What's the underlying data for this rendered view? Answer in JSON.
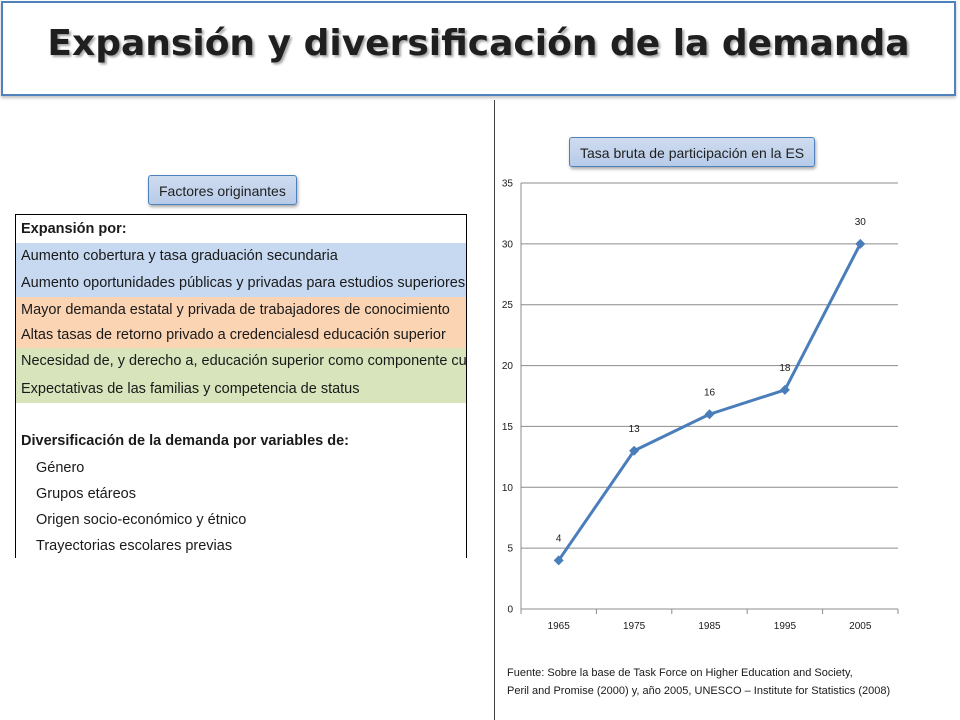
{
  "title": "Expansión y diversificación de la demanda",
  "left_panel": {
    "label": "Factores originantes",
    "rows": [
      {
        "text": "Expansión por:",
        "bold": true,
        "indent": false,
        "bg": "#ffffff"
      },
      {
        "text": "Aumento cobertura y tasa graduación secundaria",
        "bold": false,
        "indent": false,
        "bg": "#c6d9f1"
      },
      {
        "text": "Aumento oportunidades públicas y privadas para estudios superiores",
        "bold": false,
        "indent": false,
        "bg": "#c6d9f1"
      },
      {
        "text": "Mayor demanda estatal y privada de trabajadores de conocimiento",
        "bold": false,
        "indent": false,
        "bg": "#fbd4b4"
      },
      {
        "text": "Altas tasas de retorno privado a credencialesd educación superior",
        "bold": false,
        "indent": false,
        "bg": "#fbd4b4"
      },
      {
        "text": "Necesidad de, y derecho a, educación superior como componente cultura",
        "bold": false,
        "indent": false,
        "bg": "#d7e4bc"
      },
      {
        "text": "Expectativas de las familias y competencia de status",
        "bold": false,
        "indent": false,
        "bg": "#d7e4bc"
      },
      {
        "text": "",
        "bold": false,
        "indent": false,
        "bg": "#ffffff"
      },
      {
        "text": "Diversificación de la demanda por variables de:",
        "bold": true,
        "indent": false,
        "bg": "#ffffff"
      },
      {
        "text": "Género",
        "bold": false,
        "indent": true,
        "bg": "#ffffff"
      },
      {
        "text": "Grupos etáreos",
        "bold": false,
        "indent": true,
        "bg": "#ffffff"
      },
      {
        "text": "Origen socio-económico y étnico",
        "bold": false,
        "indent": true,
        "bg": "#ffffff"
      },
      {
        "text": "Trayectorias escolares previas",
        "bold": false,
        "indent": true,
        "bg": "#ffffff"
      }
    ]
  },
  "chart_label": "Tasa bruta de participación en la ES",
  "chart_data": {
    "type": "line",
    "title": "",
    "xlabel": "",
    "ylabel": "",
    "categories": [
      "1965",
      "1975",
      "1985",
      "1995",
      "2005"
    ],
    "series": [
      {
        "values": [
          4,
          13,
          16,
          18,
          30
        ],
        "labels": [
          "4",
          "13",
          "16",
          "18",
          "30"
        ],
        "color": "#4a7ebb"
      }
    ],
    "ylim": [
      0,
      35
    ],
    "yticks": [
      "0",
      "5",
      "10",
      "15",
      "20",
      "25",
      "30",
      "35"
    ],
    "grid": true,
    "legend": "none"
  },
  "source": {
    "line1": "Fuente: Sobre la base de Task Force on Higher Education and Society,",
    "line2": "Peril and Promise (2000) y, año 2005, UNESCO – Institute for Statistics (2008)"
  }
}
